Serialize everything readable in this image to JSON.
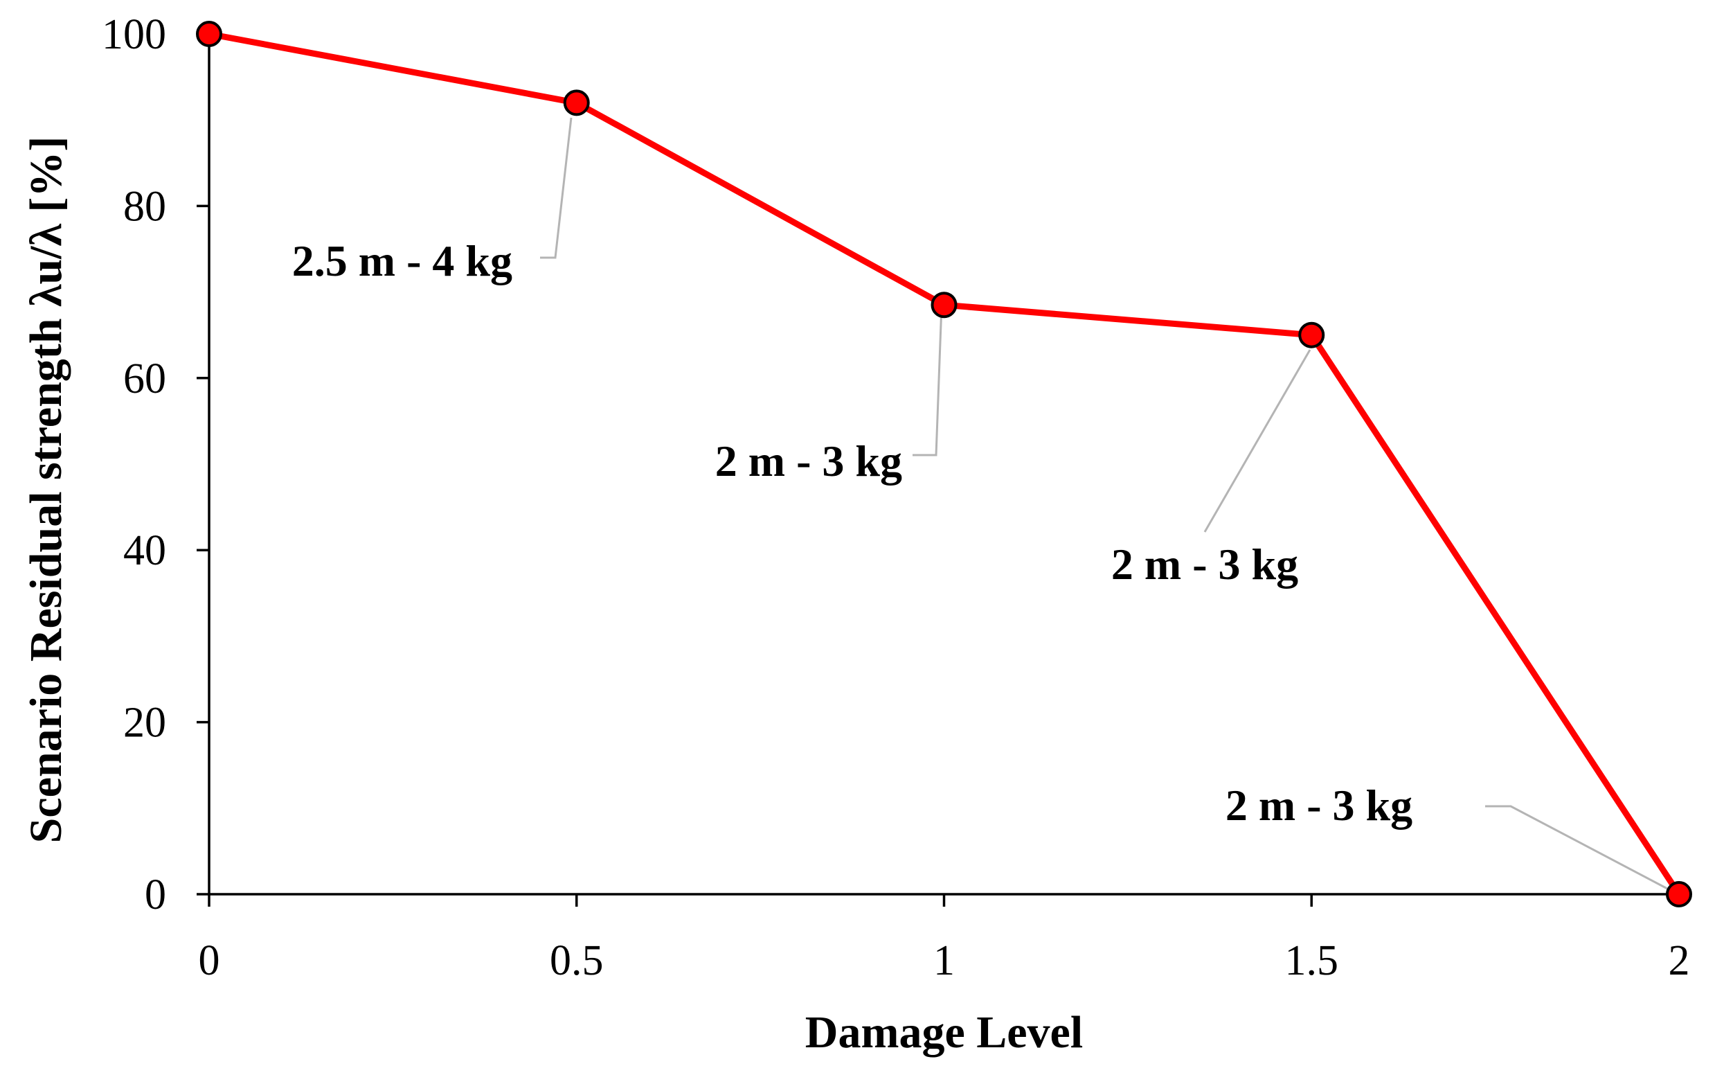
{
  "chart_data": {
    "type": "line",
    "title": "",
    "xlabel": "Damage Level",
    "ylabel": "Scenario Residual strength λu/λ [%]",
    "xlim": [
      0,
      2
    ],
    "ylim": [
      0,
      100
    ],
    "xticks": [
      0,
      0.5,
      1,
      1.5,
      2
    ],
    "xtick_labels": [
      "0",
      "0.5",
      "1",
      "1.5",
      "2"
    ],
    "yticks": [
      0,
      20,
      40,
      60,
      80,
      100
    ],
    "ytick_labels": [
      "0",
      "20",
      "40",
      "60",
      "80",
      "100"
    ],
    "grid": false,
    "legend": "none",
    "series": [
      {
        "x": [
          0,
          0.5,
          1,
          1.5,
          2
        ],
        "y": [
          100,
          92,
          68.5,
          65,
          0
        ],
        "color": "#ff0000",
        "marker_color": "#ff0000",
        "marker_edge": "#000000"
      }
    ],
    "annotations": [
      {
        "text": "2.5 m - 4 kg",
        "point": [
          0.5,
          92
        ]
      },
      {
        "text": "2 m - 3 kg",
        "point": [
          1,
          68.5
        ]
      },
      {
        "text": "2 m - 3 kg",
        "point": [
          1.5,
          65
        ]
      },
      {
        "text": "2 m - 3 kg",
        "point": [
          2,
          0
        ]
      }
    ],
    "leader_color": "#b4b4b4"
  }
}
